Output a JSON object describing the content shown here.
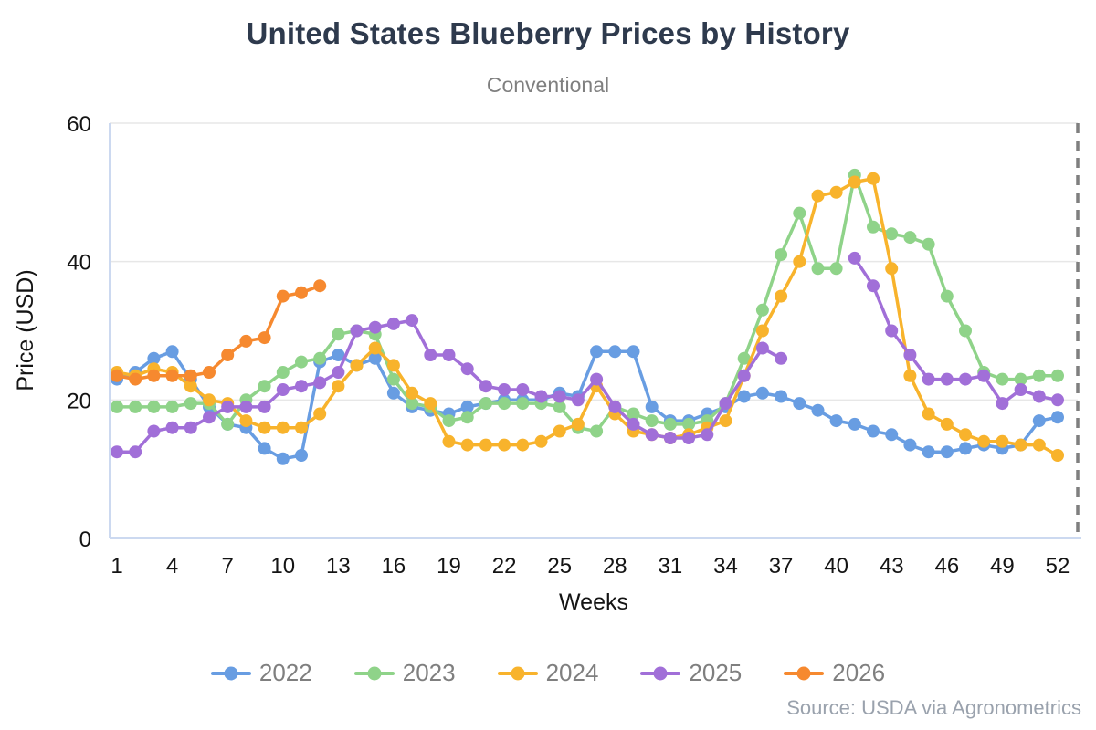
{
  "title": "United States Blueberry Prices by History",
  "subtitle": "Conventional",
  "source": "Source: USDA via Agronometrics",
  "chart_data": {
    "type": "line",
    "xlabel": "Weeks",
    "ylabel": "Price (USD)",
    "xlim": [
      1,
      52
    ],
    "ylim": [
      0,
      60
    ],
    "x_ticks": [
      1,
      4,
      7,
      10,
      13,
      16,
      19,
      22,
      25,
      28,
      31,
      34,
      37,
      40,
      43,
      46,
      49,
      52
    ],
    "y_ticks": [
      0,
      20,
      40,
      60
    ],
    "grid": "horizontal",
    "legend_position": "bottom",
    "colors": {
      "axis": "#ccd9f0",
      "grid": "#e7e7e7",
      "dashed_line": "#7f7f7f"
    },
    "annotations": [
      {
        "type": "vline",
        "x": 52.5,
        "style": "dashed",
        "color": "#7f7f7f"
      }
    ],
    "series": [
      {
        "name": "2022",
        "color": "#689de2",
        "values": [
          23,
          24,
          26,
          27,
          23,
          19,
          16.5,
          16,
          13,
          11.5,
          12,
          25.5,
          26.5,
          25,
          26,
          21,
          19,
          18.5,
          18,
          19,
          19.5,
          20,
          20,
          20,
          21,
          20.5,
          27,
          27,
          27,
          19,
          17,
          17,
          18,
          19,
          20.5,
          21,
          20.5,
          19.5,
          18.5,
          17,
          16.5,
          15.5,
          15,
          13.5,
          12.5,
          12.5,
          13,
          13.5,
          13,
          13.5,
          17,
          17.5
        ]
      },
      {
        "name": "2023",
        "color": "#8fd389",
        "values": [
          19,
          19,
          19,
          19,
          19.5,
          19.5,
          16.5,
          20,
          22,
          24,
          25.5,
          26,
          29.5,
          30,
          29.5,
          23,
          19.5,
          19,
          17,
          17.5,
          19.5,
          19.5,
          19.5,
          19.5,
          19,
          16,
          15.5,
          19,
          18,
          17,
          16.5,
          16.5,
          17,
          19.5,
          26,
          33,
          41,
          47,
          39,
          39,
          52.5,
          45,
          44,
          43.5,
          42.5,
          35,
          30,
          24,
          23,
          23,
          23.5,
          23.5
        ]
      },
      {
        "name": "2024",
        "color": "#f8b32c",
        "values": [
          24,
          23.5,
          24.5,
          24,
          22,
          20,
          19.5,
          17,
          16,
          16,
          16,
          18,
          22,
          25,
          27.5,
          25,
          21,
          19.5,
          14,
          13.5,
          13.5,
          13.5,
          13.5,
          14,
          15.5,
          16.5,
          22,
          18,
          15.5,
          15,
          14.5,
          15,
          16,
          17,
          23.5,
          30,
          35,
          40,
          49.5,
          50,
          51.5,
          52,
          39,
          23.5,
          18,
          16.5,
          15,
          14,
          14,
          13.5,
          13.5,
          12
        ]
      },
      {
        "name": "2025",
        "color": "#a16fd8",
        "values": [
          12.5,
          12.5,
          15.5,
          16,
          16,
          17.5,
          19,
          19,
          19,
          21.5,
          22,
          22.5,
          24,
          30,
          30.5,
          31,
          31.5,
          26.5,
          26.5,
          24.5,
          22,
          21.5,
          21.5,
          20.5,
          20.5,
          20,
          23,
          19,
          16.5,
          15,
          14.5,
          14.5,
          15,
          19.5,
          23.5,
          27.5,
          26,
          null,
          null,
          null,
          40.5,
          36.5,
          30,
          26.5,
          23,
          23,
          23,
          23.5,
          19.5,
          21.5,
          20.5,
          20
        ]
      },
      {
        "name": "2026",
        "color": "#f6892f",
        "values": [
          23.5,
          23,
          23.5,
          23.5,
          23.5,
          24,
          26.5,
          28.5,
          29,
          35,
          35.5,
          36.5,
          null,
          null,
          null,
          null,
          null,
          null,
          null,
          null,
          null,
          null,
          null,
          null,
          null,
          null,
          null,
          null,
          null,
          null,
          null,
          null,
          null,
          null,
          null,
          null,
          null,
          null,
          null,
          null,
          null,
          null,
          null,
          null,
          null,
          null,
          null,
          null,
          null,
          null,
          null,
          null
        ]
      }
    ]
  }
}
